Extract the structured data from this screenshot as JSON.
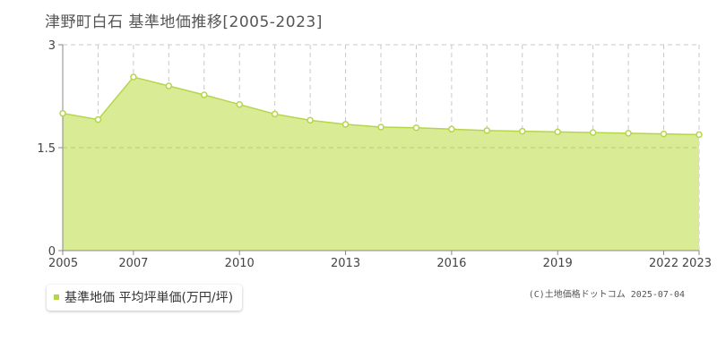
{
  "title": "津野町白石 基準地価推移[2005-2023]",
  "copyright": "(C)土地価格ドットコム 2025-07-04",
  "legend": {
    "label": "基準地価 平均坪単価(万円/坪)",
    "color": "#b5d64a"
  },
  "colors": {
    "fill": "#d9ec95",
    "line": "#b5d64a",
    "grid": "#c8c8c8",
    "axis": "#888888"
  },
  "chart_data": {
    "type": "area",
    "x": [
      2005,
      2006,
      2007,
      2008,
      2009,
      2010,
      2011,
      2012,
      2013,
      2014,
      2015,
      2016,
      2017,
      2018,
      2019,
      2020,
      2021,
      2022,
      2023
    ],
    "series": [
      {
        "name": "基準地価 平均坪単価(万円/坪)",
        "values": [
          2.0,
          1.91,
          2.53,
          2.4,
          2.27,
          2.13,
          1.99,
          1.9,
          1.84,
          1.8,
          1.79,
          1.77,
          1.75,
          1.74,
          1.73,
          1.72,
          1.71,
          1.7,
          1.69
        ]
      }
    ],
    "xticks": [
      "2005",
      "2007",
      "2010",
      "2013",
      "2016",
      "2019",
      "2022",
      "2023"
    ],
    "yticks": [
      "0",
      "1.5",
      "3"
    ],
    "ylim": [
      0,
      3
    ],
    "xlabel": "",
    "ylabel": "",
    "grid": true,
    "legend_position": "bottom-left"
  }
}
